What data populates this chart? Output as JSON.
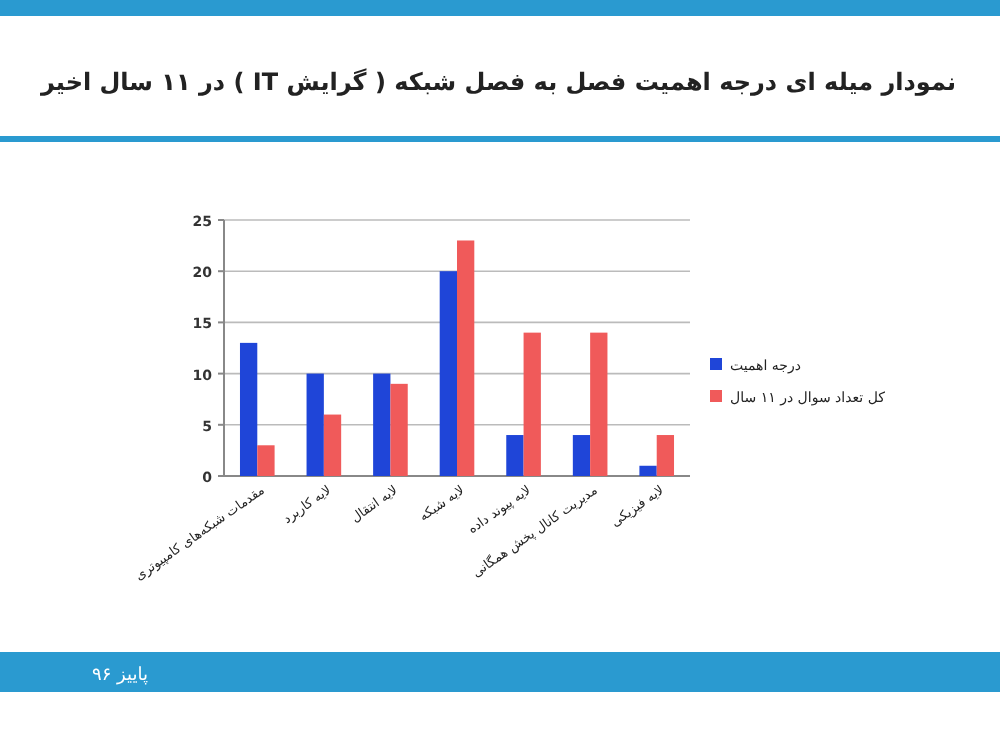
{
  "chart_data": {
    "type": "bar",
    "title": "نمودار میله ای درجه اهمیت فصل به فصل شبکه ( گرایش IT ) در ۱۱ سال اخیر",
    "categories": [
      "مقدمات شبکه‌های کامپیوتری",
      "لایه کاربرد",
      "لایه انتقال",
      "لایه شبکه",
      "لایه پیوند داده",
      "مدیریت کانال پخش همگانی",
      "لایه فیزیکی"
    ],
    "series": [
      {
        "name": "درجه اهمیت",
        "color": "#1f45d8",
        "values": [
          13,
          10,
          10,
          20,
          4,
          4,
          1
        ]
      },
      {
        "name": "کل تعداد سوال در ۱۱ سال",
        "color": "#f05a5a",
        "values": [
          3,
          6,
          9,
          23,
          14,
          14,
          4
        ]
      }
    ],
    "ylim": [
      0,
      25
    ],
    "yticks": [
      0,
      5,
      10,
      15,
      20,
      25
    ],
    "grid": "y",
    "legend": "right",
    "annotations": [
      "پاییز ۹۶"
    ]
  }
}
